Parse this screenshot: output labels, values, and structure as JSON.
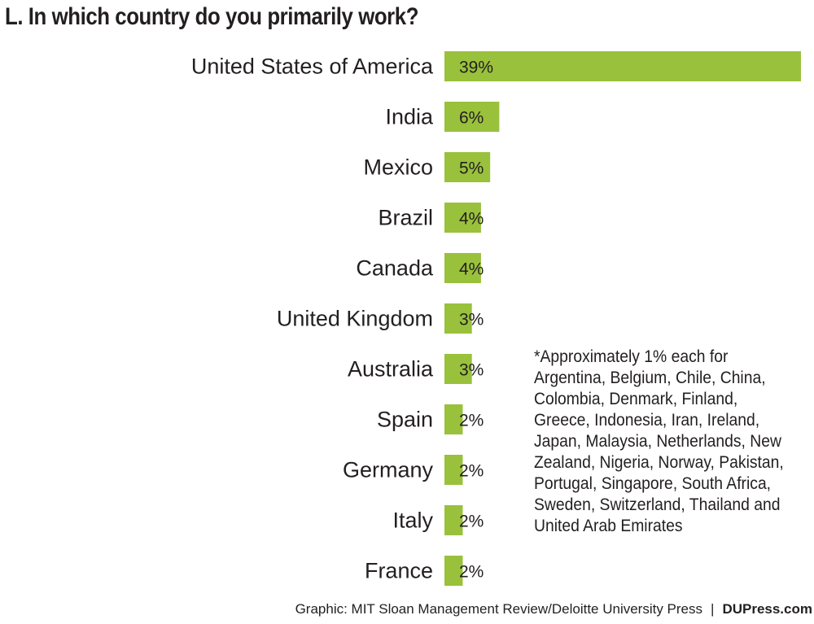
{
  "title": "L. In which country do you primarily work?",
  "chart_data": {
    "type": "bar",
    "orientation": "horizontal",
    "categories": [
      "United States of America",
      "India",
      "Mexico",
      "Brazil",
      "Canada",
      "United Kingdom",
      "Australia",
      "Spain",
      "Germany",
      "Italy",
      "France"
    ],
    "values": [
      39,
      6,
      5,
      4,
      4,
      3,
      3,
      2,
      2,
      2,
      2
    ],
    "value_labels": [
      "39%",
      "6%",
      "5%",
      "4%",
      "4%",
      "3%",
      "3%",
      "2%",
      "2%",
      "2%",
      "2%"
    ],
    "unit": "%",
    "bar_color": "#99c13c",
    "grid": false,
    "xlim": [
      0,
      39
    ]
  },
  "note": "*Approximately 1% each for Argentina, Belgium, Chile, China, Colombia, Denmark, Finland, Greece, Indonesia, Iran, Ireland, Japan, Malaysia, Netherlands, New Zealand, Nigeria, Norway, Pakistan, Portugal, Singapore, South Africa, Sweden, Switzerland, Thailand and United Arab Emirates",
  "source": {
    "text": "Graphic: MIT Sloan Management Review/Deloitte University Press",
    "separator": "|",
    "url": "DUPress.com"
  }
}
